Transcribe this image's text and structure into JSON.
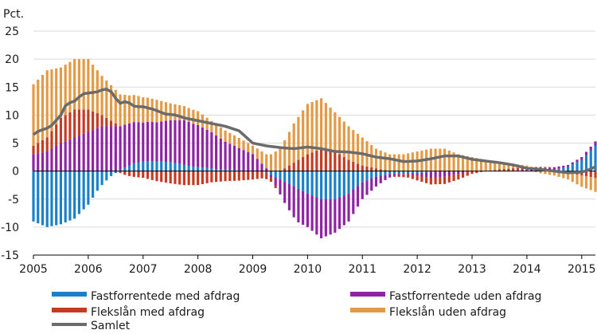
{
  "chart_data": {
    "type": "bar",
    "stacked": true,
    "unit_label": "Pct.",
    "ylim": [
      -15,
      25
    ],
    "yticks": [
      -15,
      -10,
      -5,
      0,
      5,
      10,
      15,
      20,
      25
    ],
    "x_start_year": 2005,
    "x_end_year": 2015.25,
    "xticks": [
      "2005",
      "2006",
      "2007",
      "2008",
      "2009",
      "2010",
      "2011",
      "2012",
      "2013",
      "2014",
      "2015"
    ],
    "grid": true,
    "legend_position": "bottom",
    "colors": {
      "fast_med": "#1a80c9",
      "fast_uden": "#8e23a3",
      "flex_med": "#c53a22",
      "flex_uden": "#e39a44",
      "samlet": "#6b6b6b"
    },
    "series_names": {
      "fast_med": "Fastforrentede med afdrag",
      "fast_uden": "Fastforrentede uden afdrag",
      "flex_med": "Flekslån med afdrag",
      "flex_uden": "Flekslån uden afdrag",
      "samlet": "Samlet"
    },
    "anchors": {
      "fast_med": [
        [
          2005.0,
          -9
        ],
        [
          2005.25,
          -10
        ],
        [
          2005.5,
          -9.5
        ],
        [
          2005.75,
          -8.5
        ],
        [
          2006.0,
          -6
        ],
        [
          2006.2,
          -3
        ],
        [
          2006.4,
          -1
        ],
        [
          2006.6,
          0.3
        ],
        [
          2006.85,
          1.5
        ],
        [
          2007.1,
          1.8
        ],
        [
          2007.5,
          1.6
        ],
        [
          2007.9,
          0.8
        ],
        [
          2008.4,
          0.3
        ],
        [
          2008.8,
          0.1
        ],
        [
          2009.2,
          0
        ],
        [
          2009.4,
          -1
        ],
        [
          2009.6,
          -2
        ],
        [
          2009.8,
          -3
        ],
        [
          2010.0,
          -4
        ],
        [
          2010.25,
          -5
        ],
        [
          2010.5,
          -5
        ],
        [
          2010.75,
          -4
        ],
        [
          2011.0,
          -2
        ],
        [
          2011.25,
          -1
        ],
        [
          2011.5,
          -0.5
        ],
        [
          2011.8,
          -0.5
        ],
        [
          2012.1,
          -0.3
        ],
        [
          2012.5,
          0
        ],
        [
          2013.0,
          0
        ],
        [
          2014.0,
          0
        ],
        [
          2014.5,
          0.2
        ],
        [
          2014.75,
          0.8
        ],
        [
          2015.0,
          2
        ],
        [
          2015.25,
          4.5
        ]
      ],
      "fast_uden": [
        [
          2005.0,
          3
        ],
        [
          2005.25,
          3.5
        ],
        [
          2005.5,
          5
        ],
        [
          2005.75,
          6
        ],
        [
          2006.0,
          7
        ],
        [
          2006.25,
          8
        ],
        [
          2006.5,
          8
        ],
        [
          2006.75,
          7.5
        ],
        [
          2007.0,
          7
        ],
        [
          2007.25,
          7
        ],
        [
          2007.5,
          7.5
        ],
        [
          2007.75,
          8
        ],
        [
          2008.0,
          7.5
        ],
        [
          2008.25,
          6.5
        ],
        [
          2008.5,
          5
        ],
        [
          2008.75,
          4
        ],
        [
          2009.0,
          3
        ],
        [
          2009.15,
          1.5
        ],
        [
          2009.3,
          0
        ],
        [
          2009.45,
          -2
        ],
        [
          2009.6,
          -4
        ],
        [
          2009.8,
          -6
        ],
        [
          2010.0,
          -6
        ],
        [
          2010.25,
          -7
        ],
        [
          2010.5,
          -6
        ],
        [
          2010.75,
          -5
        ],
        [
          2011.0,
          -3
        ],
        [
          2011.2,
          -2
        ],
        [
          2011.4,
          -1
        ],
        [
          2011.6,
          -0.3
        ],
        [
          2011.8,
          0
        ],
        [
          2012.0,
          -0.5
        ],
        [
          2012.25,
          -1
        ],
        [
          2012.5,
          -1
        ],
        [
          2012.75,
          -0.5
        ],
        [
          2013.0,
          0
        ],
        [
          2013.5,
          0
        ],
        [
          2014.0,
          0.2
        ],
        [
          2014.5,
          0.5
        ],
        [
          2014.75,
          0.3
        ],
        [
          2015.0,
          0.5
        ],
        [
          2015.25,
          0.8
        ]
      ],
      "flex_med": [
        [
          2005.0,
          1.5
        ],
        [
          2005.25,
          2.5
        ],
        [
          2005.5,
          4.5
        ],
        [
          2005.75,
          5
        ],
        [
          2006.0,
          4
        ],
        [
          2006.25,
          2
        ],
        [
          2006.5,
          0.5
        ],
        [
          2006.6,
          -0.5
        ],
        [
          2006.8,
          -1
        ],
        [
          2007.0,
          -1.2
        ],
        [
          2007.25,
          -1.8
        ],
        [
          2007.5,
          -2.2
        ],
        [
          2007.75,
          -2.5
        ],
        [
          2008.0,
          -2.5
        ],
        [
          2008.25,
          -2
        ],
        [
          2008.5,
          -1.8
        ],
        [
          2008.75,
          -1.7
        ],
        [
          2009.0,
          -1.5
        ],
        [
          2009.25,
          -1.2
        ],
        [
          2009.5,
          0
        ],
        [
          2009.75,
          1.5
        ],
        [
          2010.0,
          3
        ],
        [
          2010.25,
          4
        ],
        [
          2010.5,
          3.5
        ],
        [
          2010.75,
          2
        ],
        [
          2011.0,
          1
        ],
        [
          2011.25,
          0.5
        ],
        [
          2011.5,
          0
        ],
        [
          2011.75,
          -0.5
        ],
        [
          2012.0,
          -0.8
        ],
        [
          2012.25,
          -1.2
        ],
        [
          2012.5,
          -1.3
        ],
        [
          2012.75,
          -1
        ],
        [
          2013.0,
          -0.5
        ],
        [
          2013.25,
          0
        ],
        [
          2013.5,
          0.3
        ],
        [
          2014.0,
          0.5
        ],
        [
          2014.25,
          0.3
        ],
        [
          2014.5,
          0
        ],
        [
          2014.75,
          -0.3
        ],
        [
          2015.0,
          -0.8
        ],
        [
          2015.25,
          -1.2
        ]
      ],
      "flex_uden": [
        [
          2005.0,
          11
        ],
        [
          2005.25,
          12
        ],
        [
          2005.5,
          9
        ],
        [
          2005.75,
          9
        ],
        [
          2006.0,
          9
        ],
        [
          2006.25,
          7
        ],
        [
          2006.5,
          6
        ],
        [
          2006.75,
          5
        ],
        [
          2007.0,
          4.5
        ],
        [
          2007.25,
          4
        ],
        [
          2007.5,
          3
        ],
        [
          2007.75,
          2.5
        ],
        [
          2008.0,
          2.5
        ],
        [
          2008.25,
          2
        ],
        [
          2008.5,
          2
        ],
        [
          2008.75,
          1.8
        ],
        [
          2009.0,
          1.5
        ],
        [
          2009.25,
          2.5
        ],
        [
          2009.5,
          4
        ],
        [
          2009.75,
          7
        ],
        [
          2010.0,
          9
        ],
        [
          2010.25,
          9
        ],
        [
          2010.5,
          7
        ],
        [
          2010.75,
          6
        ],
        [
          2011.0,
          5
        ],
        [
          2011.25,
          3.5
        ],
        [
          2011.5,
          3
        ],
        [
          2011.75,
          3
        ],
        [
          2012.0,
          3.5
        ],
        [
          2012.25,
          4
        ],
        [
          2012.5,
          4
        ],
        [
          2012.75,
          3
        ],
        [
          2013.0,
          2.5
        ],
        [
          2013.25,
          2
        ],
        [
          2013.5,
          1.2
        ],
        [
          2013.75,
          0.8
        ],
        [
          2014.0,
          0.3
        ],
        [
          2014.25,
          -0.4
        ],
        [
          2014.5,
          -0.8
        ],
        [
          2014.75,
          -1.2
        ],
        [
          2015.0,
          -2
        ],
        [
          2015.25,
          -2.5
        ]
      ],
      "samlet": [
        [
          2005.0,
          6.5
        ],
        [
          2005.1,
          7.2
        ],
        [
          2005.3,
          7.8
        ],
        [
          2005.5,
          10
        ],
        [
          2005.6,
          12
        ],
        [
          2005.75,
          12.5
        ],
        [
          2005.9,
          13.8
        ],
        [
          2006.05,
          14
        ],
        [
          2006.2,
          14.2
        ],
        [
          2006.3,
          14.8
        ],
        [
          2006.45,
          14
        ],
        [
          2006.55,
          12
        ],
        [
          2006.7,
          12.5
        ],
        [
          2006.85,
          11.5
        ],
        [
          2007.0,
          11.5
        ],
        [
          2007.2,
          11
        ],
        [
          2007.4,
          10.2
        ],
        [
          2007.6,
          10
        ],
        [
          2007.75,
          9.5
        ],
        [
          2008.0,
          9
        ],
        [
          2008.25,
          8.5
        ],
        [
          2008.5,
          8
        ],
        [
          2008.75,
          7.2
        ],
        [
          2009.0,
          5
        ],
        [
          2009.25,
          4.5
        ],
        [
          2009.5,
          4.2
        ],
        [
          2009.75,
          4
        ],
        [
          2010.0,
          4.3
        ],
        [
          2010.25,
          4
        ],
        [
          2010.5,
          3.5
        ],
        [
          2010.75,
          3.4
        ],
        [
          2011.0,
          3.1
        ],
        [
          2011.25,
          2.5
        ],
        [
          2011.5,
          2.2
        ],
        [
          2011.75,
          1.7
        ],
        [
          2012.0,
          1.8
        ],
        [
          2012.25,
          2.2
        ],
        [
          2012.5,
          2.7
        ],
        [
          2012.75,
          2.7
        ],
        [
          2013.0,
          2.1
        ],
        [
          2013.25,
          1.8
        ],
        [
          2013.5,
          1.5
        ],
        [
          2013.75,
          1.1
        ],
        [
          2014.0,
          0.5
        ],
        [
          2014.25,
          0.3
        ],
        [
          2014.5,
          0
        ],
        [
          2014.75,
          -0.3
        ],
        [
          2015.0,
          -0.2
        ],
        [
          2015.15,
          0.3
        ],
        [
          2015.25,
          0.8
        ]
      ]
    }
  }
}
